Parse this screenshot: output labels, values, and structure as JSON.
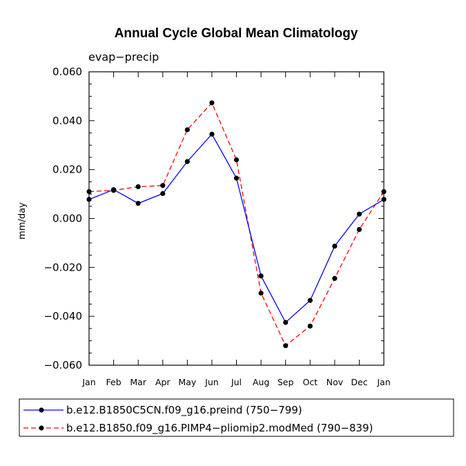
{
  "chart_data": {
    "type": "line",
    "title": "Annual Cycle Global Mean Climatology",
    "subtitle": "evap−precip",
    "xlabel": "",
    "ylabel": "mm/day",
    "categories": [
      "Jan",
      "Feb",
      "Mar",
      "Apr",
      "May",
      "Jun",
      "Jul",
      "Aug",
      "Sep",
      "Oct",
      "Nov",
      "Dec",
      "Jan"
    ],
    "ylim": [
      -0.06,
      0.06
    ],
    "yticks": [
      0.06,
      0.04,
      0.02,
      0.0,
      -0.02,
      -0.04,
      -0.06
    ],
    "ytick_labels": [
      "0.060",
      "0.040",
      "0.020",
      "0.000",
      "−0.020",
      "−0.040",
      "−0.060"
    ],
    "grid": false,
    "legend_position": "bottom",
    "series": [
      {
        "name": "b.e12.B1850C5CN.f09_g16.preind (750−799)",
        "color": "#0000ff",
        "style": "solid",
        "values": [
          0.0078,
          0.0118,
          0.0062,
          0.0102,
          0.0233,
          0.0345,
          0.0165,
          -0.0235,
          -0.0425,
          -0.0335,
          -0.0113,
          0.0018,
          0.0078
        ]
      },
      {
        "name": "b.e12.B1850.f09_g16.PIMP4−pliomip2.modMed (790−839)",
        "color": "#ff0000",
        "style": "dashed",
        "values": [
          0.011,
          0.0115,
          0.013,
          0.0135,
          0.0363,
          0.0473,
          0.024,
          -0.0305,
          -0.052,
          -0.044,
          -0.0245,
          -0.0045,
          0.011
        ]
      }
    ]
  }
}
